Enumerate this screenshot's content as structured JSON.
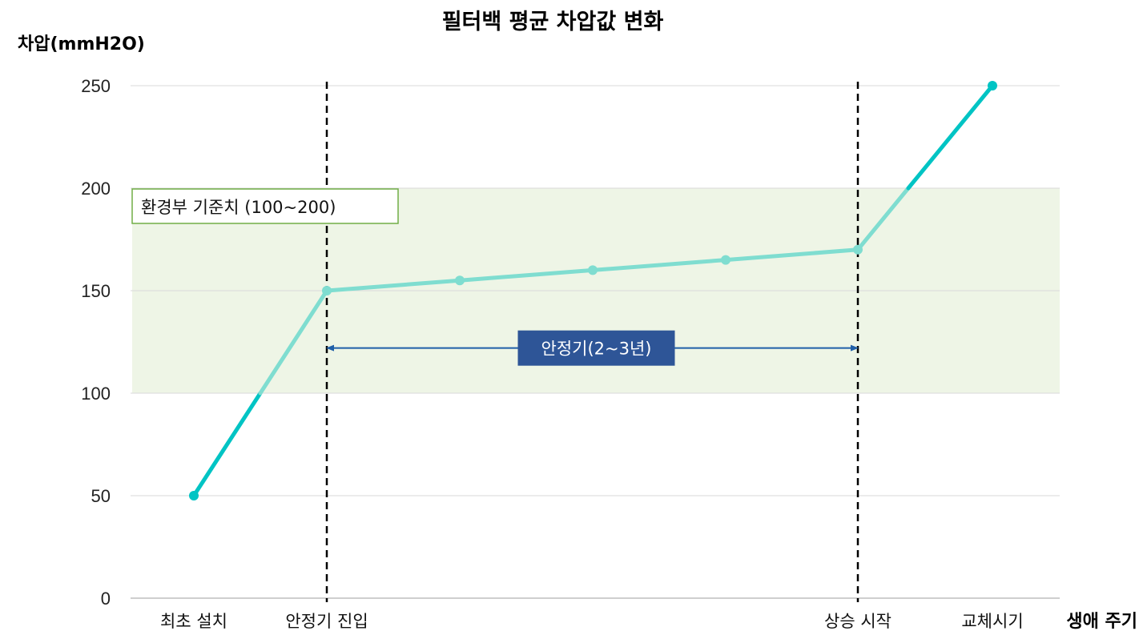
{
  "chart_data": {
    "type": "line",
    "title": "필터백 평균 차압값 변화",
    "ylabel": "차압(mmH2O)",
    "xlabel": "생애 주기",
    "ylim": [
      0,
      250
    ],
    "yticks": [
      0,
      50,
      100,
      150,
      200,
      250
    ],
    "x": [
      0,
      1,
      2,
      3,
      4,
      5,
      6
    ],
    "xtick_labels": [
      {
        "x": 0,
        "label": "최초 설치"
      },
      {
        "x": 1,
        "label": "안정기 진입"
      },
      {
        "x": 5,
        "label": "상승 시작"
      },
      {
        "x": 6,
        "label": "교체시기"
      }
    ],
    "series": [
      {
        "values": [
          50,
          150,
          155,
          160,
          165,
          170,
          250
        ],
        "color": "#00c4c4",
        "color_in_band": "#7fddd0"
      }
    ],
    "reference_band": {
      "from": 100,
      "to": 200,
      "label": "환경부 기준치 (100~200)",
      "fill": "#eef5e6",
      "border": "#70ad47"
    },
    "vlines": [
      1,
      5
    ],
    "period": {
      "from": 1,
      "to": 5,
      "y": 122,
      "label": "안정기(2~3년)",
      "color": "#1f5fa8",
      "label_bg": "#2e5597"
    },
    "grid": true
  }
}
